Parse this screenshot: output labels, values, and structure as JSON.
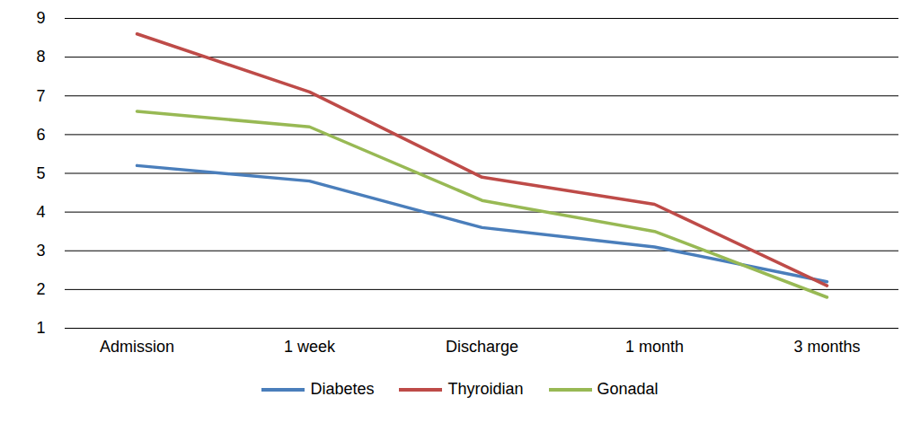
{
  "chart_data": {
    "type": "line",
    "categories": [
      "Admission",
      "1 week",
      "Discharge",
      "1 month",
      "3 months"
    ],
    "series": [
      {
        "name": "Diabetes",
        "color": "#4a7ebb",
        "values": [
          5.2,
          4.8,
          3.6,
          3.1,
          2.2
        ]
      },
      {
        "name": "Thyroidian",
        "color": "#be4b48",
        "values": [
          8.6,
          7.1,
          4.9,
          4.2,
          2.1
        ]
      },
      {
        "name": "Gonadal",
        "color": "#98b954",
        "values": [
          6.6,
          6.2,
          4.3,
          3.5,
          1.8
        ]
      }
    ],
    "ylim": [
      1,
      9
    ],
    "yticks": [
      1,
      2,
      3,
      4,
      5,
      6,
      7,
      8,
      9
    ],
    "grid": true,
    "legend": "bottom"
  }
}
